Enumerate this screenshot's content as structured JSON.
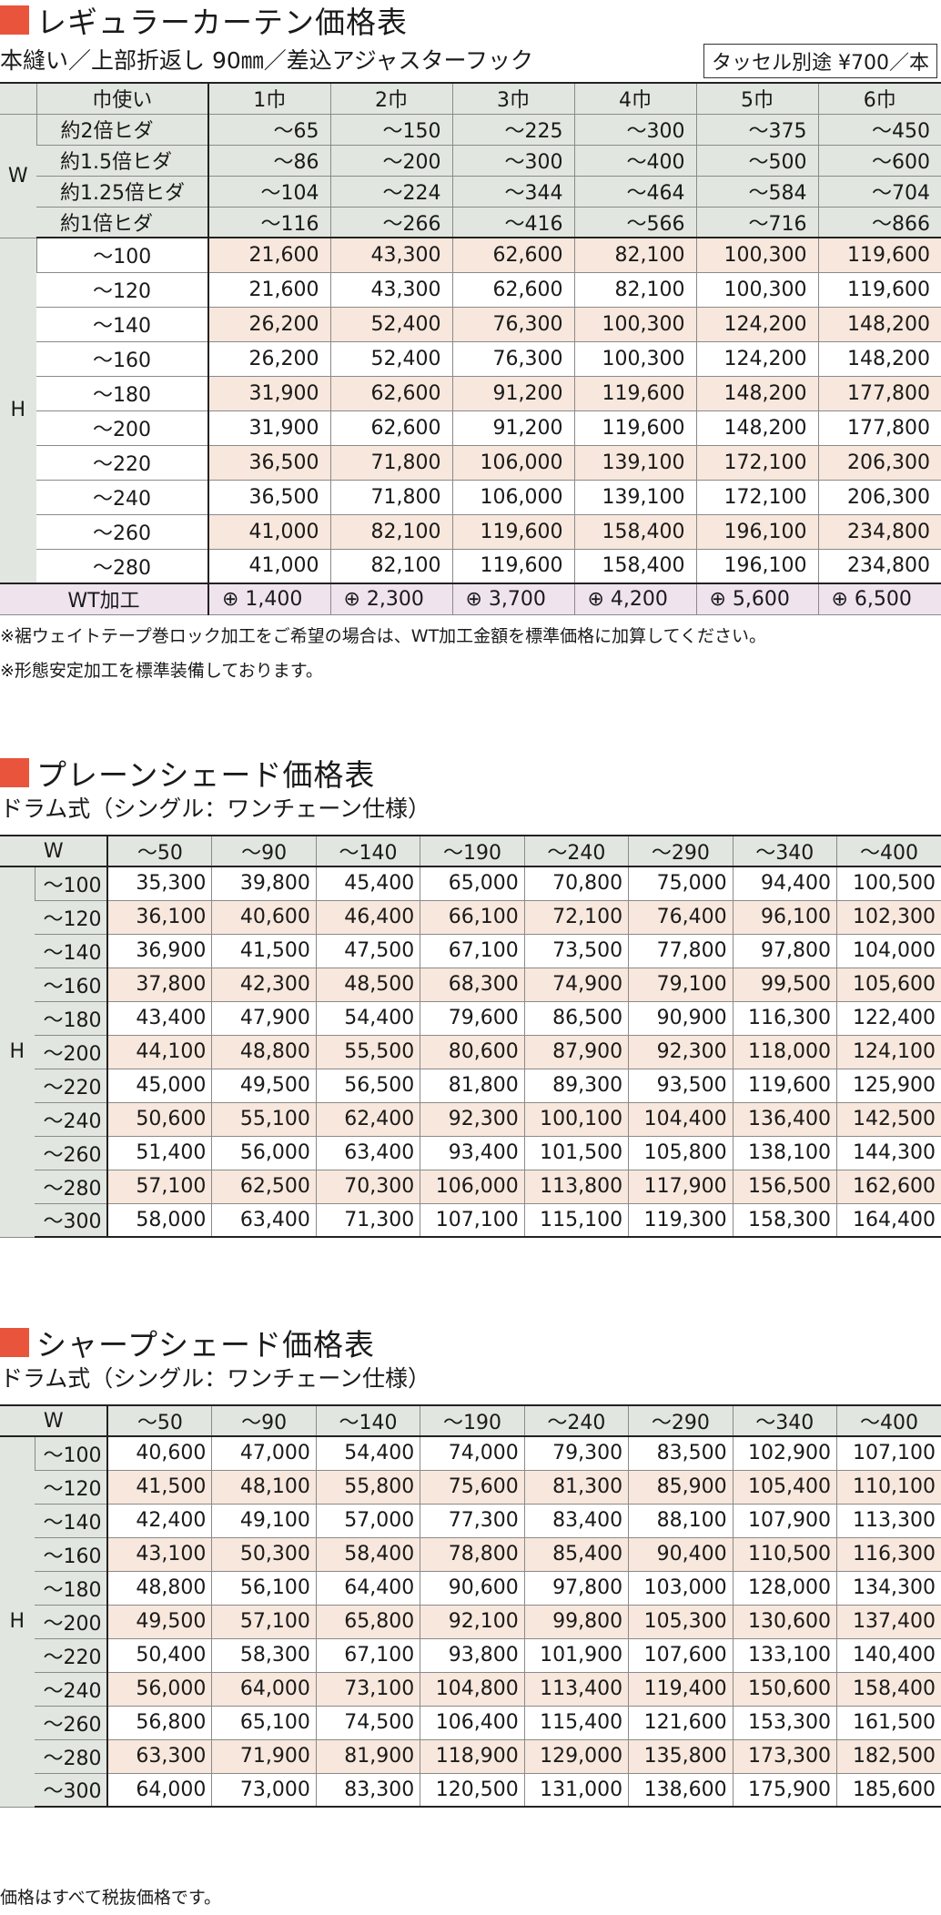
{
  "regular": {
    "title": "レギュラーカーテン価格表",
    "subtitle": "本縫い／上部折返し 90㎜／差込アジャスターフック",
    "tassel": "タッセル別途 ¥700／本",
    "corner": "巾使い",
    "columns": [
      "1巾",
      "2巾",
      "3巾",
      "4巾",
      "5巾",
      "6巾"
    ],
    "w_label": "W",
    "w_rows": [
      {
        "label": "約2倍ヒダ",
        "values": [
          "～65",
          "～150",
          "～225",
          "～300",
          "～375",
          "～450"
        ]
      },
      {
        "label": "約1.5倍ヒダ",
        "values": [
          "～86",
          "～200",
          "～300",
          "～400",
          "～500",
          "～600"
        ]
      },
      {
        "label": "約1.25倍ヒダ",
        "values": [
          "～104",
          "～224",
          "～344",
          "～464",
          "～584",
          "～704"
        ]
      },
      {
        "label": "約1倍ヒダ",
        "values": [
          "～116",
          "～266",
          "～416",
          "～566",
          "～716",
          "～866"
        ]
      }
    ],
    "h_label": "H",
    "h_rows": [
      {
        "label": "～100",
        "values": [
          "21,600",
          "43,300",
          "62,600",
          "82,100",
          "100,300",
          "119,600"
        ]
      },
      {
        "label": "～120",
        "values": [
          "21,600",
          "43,300",
          "62,600",
          "82,100",
          "100,300",
          "119,600"
        ]
      },
      {
        "label": "～140",
        "values": [
          "26,200",
          "52,400",
          "76,300",
          "100,300",
          "124,200",
          "148,200"
        ]
      },
      {
        "label": "～160",
        "values": [
          "26,200",
          "52,400",
          "76,300",
          "100,300",
          "124,200",
          "148,200"
        ]
      },
      {
        "label": "～180",
        "values": [
          "31,900",
          "62,600",
          "91,200",
          "119,600",
          "148,200",
          "177,800"
        ]
      },
      {
        "label": "～200",
        "values": [
          "31,900",
          "62,600",
          "91,200",
          "119,600",
          "148,200",
          "177,800"
        ]
      },
      {
        "label": "～220",
        "values": [
          "36,500",
          "71,800",
          "106,000",
          "139,100",
          "172,100",
          "206,300"
        ]
      },
      {
        "label": "～240",
        "values": [
          "36,500",
          "71,800",
          "106,000",
          "139,100",
          "172,100",
          "206,300"
        ]
      },
      {
        "label": "～260",
        "values": [
          "41,000",
          "82,100",
          "119,600",
          "158,400",
          "196,100",
          "234,800"
        ]
      },
      {
        "label": "～280",
        "values": [
          "41,000",
          "82,100",
          "119,600",
          "158,400",
          "196,100",
          "234,800"
        ]
      }
    ],
    "wt": {
      "label": "WT加工",
      "values": [
        "⊕ 1,400",
        "⊕ 2,300",
        "⊕ 3,700",
        "⊕ 4,200",
        "⊕ 5,600",
        "⊕ 6,500"
      ]
    },
    "notes": [
      "※裾ウェイトテープ巻ロック加工をご希望の場合は、WT加工金額を標準価格に加算してください。",
      "※形態安定加工を標準装備しております。"
    ]
  },
  "plain": {
    "title": "プレーンシェード価格表",
    "subtitle": "ドラム式（シングル：ワンチェーン仕様）",
    "w_label": "W",
    "h_label": "H",
    "columns": [
      "～50",
      "～90",
      "～140",
      "～190",
      "～240",
      "～290",
      "～340",
      "～400"
    ],
    "rows": [
      {
        "label": "～100",
        "values": [
          "35,300",
          "39,800",
          "45,400",
          "65,000",
          "70,800",
          "75,000",
          "94,400",
          "100,500"
        ]
      },
      {
        "label": "～120",
        "values": [
          "36,100",
          "40,600",
          "46,400",
          "66,100",
          "72,100",
          "76,400",
          "96,100",
          "102,300"
        ]
      },
      {
        "label": "～140",
        "values": [
          "36,900",
          "41,500",
          "47,500",
          "67,100",
          "73,500",
          "77,800",
          "97,800",
          "104,000"
        ]
      },
      {
        "label": "～160",
        "values": [
          "37,800",
          "42,300",
          "48,500",
          "68,300",
          "74,900",
          "79,100",
          "99,500",
          "105,600"
        ]
      },
      {
        "label": "～180",
        "values": [
          "43,400",
          "47,900",
          "54,400",
          "79,600",
          "86,500",
          "90,900",
          "116,300",
          "122,400"
        ]
      },
      {
        "label": "～200",
        "values": [
          "44,100",
          "48,800",
          "55,500",
          "80,600",
          "87,900",
          "92,300",
          "118,000",
          "124,100"
        ]
      },
      {
        "label": "～220",
        "values": [
          "45,000",
          "49,500",
          "56,500",
          "81,800",
          "89,300",
          "93,500",
          "119,600",
          "125,900"
        ]
      },
      {
        "label": "～240",
        "values": [
          "50,600",
          "55,100",
          "62,400",
          "92,300",
          "100,100",
          "104,400",
          "136,400",
          "142,500"
        ]
      },
      {
        "label": "～260",
        "values": [
          "51,400",
          "56,000",
          "63,400",
          "93,400",
          "101,500",
          "105,800",
          "138,100",
          "144,300"
        ]
      },
      {
        "label": "～280",
        "values": [
          "57,100",
          "62,500",
          "70,300",
          "106,000",
          "113,800",
          "117,900",
          "156,500",
          "162,600"
        ]
      },
      {
        "label": "～300",
        "values": [
          "58,000",
          "63,400",
          "71,300",
          "107,100",
          "115,100",
          "119,300",
          "158,300",
          "164,400"
        ]
      }
    ]
  },
  "sharp": {
    "title": "シャープシェード価格表",
    "subtitle": "ドラム式（シングル：ワンチェーン仕様）",
    "w_label": "W",
    "h_label": "H",
    "columns": [
      "～50",
      "～90",
      "～140",
      "～190",
      "～240",
      "～290",
      "～340",
      "～400"
    ],
    "rows": [
      {
        "label": "～100",
        "values": [
          "40,600",
          "47,000",
          "54,400",
          "74,000",
          "79,300",
          "83,500",
          "102,900",
          "107,100"
        ]
      },
      {
        "label": "～120",
        "values": [
          "41,500",
          "48,100",
          "55,800",
          "75,600",
          "81,300",
          "85,900",
          "105,400",
          "110,100"
        ]
      },
      {
        "label": "～140",
        "values": [
          "42,400",
          "49,100",
          "57,000",
          "77,300",
          "83,400",
          "88,100",
          "107,900",
          "113,300"
        ]
      },
      {
        "label": "～160",
        "values": [
          "43,100",
          "50,300",
          "58,400",
          "78,800",
          "85,400",
          "90,400",
          "110,500",
          "116,300"
        ]
      },
      {
        "label": "～180",
        "values": [
          "48,800",
          "56,100",
          "64,400",
          "90,600",
          "97,800",
          "103,000",
          "128,000",
          "134,300"
        ]
      },
      {
        "label": "～200",
        "values": [
          "49,500",
          "57,100",
          "65,800",
          "92,100",
          "99,800",
          "105,300",
          "130,600",
          "137,400"
        ]
      },
      {
        "label": "～220",
        "values": [
          "50,400",
          "58,300",
          "67,100",
          "93,800",
          "101,900",
          "107,600",
          "133,100",
          "140,400"
        ]
      },
      {
        "label": "～240",
        "values": [
          "56,000",
          "64,000",
          "73,100",
          "104,800",
          "113,400",
          "119,400",
          "150,600",
          "158,400"
        ]
      },
      {
        "label": "～260",
        "values": [
          "56,800",
          "65,100",
          "74,500",
          "106,400",
          "115,400",
          "121,600",
          "153,300",
          "161,500"
        ]
      },
      {
        "label": "～280",
        "values": [
          "63,300",
          "71,900",
          "81,900",
          "118,900",
          "129,000",
          "135,800",
          "173,300",
          "182,500"
        ]
      },
      {
        "label": "～300",
        "values": [
          "64,000",
          "73,000",
          "83,300",
          "120,500",
          "131,000",
          "138,600",
          "175,900",
          "185,600"
        ]
      }
    ]
  },
  "footer": "価格はすべて税抜価格です。",
  "colors": {
    "accent": "#e8543c",
    "header_gray": "#e2e6e0",
    "row_peach": "#f7e7dc",
    "wt_pink": "#efe3ee"
  }
}
